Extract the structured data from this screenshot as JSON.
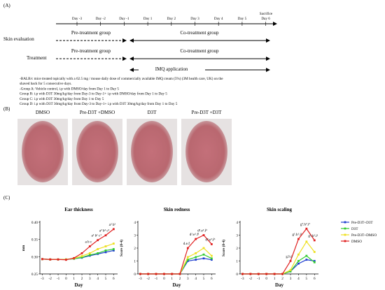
{
  "panel_a": {
    "label": "(A)",
    "days": [
      "Day -3",
      "Day -2",
      "Day -1",
      "Day 1",
      "Day 2",
      "Day 3",
      "Day 4",
      "Day 5",
      "Day 6"
    ],
    "sacrifice": "Sacrifice",
    "rows": [
      {
        "label": "Skin evaluation",
        "pre": "Pre-treatment group",
        "co": "Co-treatment group"
      },
      {
        "label": "Treatment",
        "pre": "Pre-treatment group",
        "co": "Co-treatment group"
      }
    ],
    "imq": "IMQ application",
    "notes": [
      "-BALB/c mice treated topically with a 62.5 mg / mouse daily dose of commercially available IMQ cream (5%) (3M health care, UK) on the",
      "shaved back for 5 consecutive days.",
      "-Group A: Vehicle control, i.p with DMSO/day from Day 1 to Day 5",
      "Group B: i.p with D3T 30mg/kg/day from Day-3 to Day-1+ i.p with DMSO/day from Day 1 to Day 5",
      "Group C: i.p with D3T 30mg/kg/day from Day 1 to Day 5",
      "Group D: i.p with D3T 30mg/kg/day from Day-3 to Day-1+ i.p with D3T 30mg/kg/day from Day 1 to Day 5"
    ]
  },
  "panel_b": {
    "label": "(B)",
    "photos": [
      "DMSO",
      "Pre-D3T +DMSO",
      "D3T",
      "Pre-D3T +D3T"
    ]
  },
  "panel_c": {
    "label": "(C)",
    "charts": [
      {
        "type": "line",
        "title": "Ear thickness",
        "xlabel": "Day",
        "ylabel": "mm",
        "x": [
          -3,
          -2,
          -1,
          0,
          1,
          2,
          3,
          4,
          5,
          6
        ],
        "xlim": [
          -3.3,
          6.5
        ],
        "xticks": [
          -3,
          -2,
          -1,
          0,
          1,
          2,
          3,
          4,
          5,
          6
        ],
        "ylim": [
          0.25,
          0.4
        ],
        "yticks": [
          0.25,
          {
            "value": 0.3,
            "label": "0.30"
          },
          0.35,
          {
            "value": 0.4,
            "label": "0.40"
          }
        ],
        "series": [
          {
            "name": "Pre-D3T+D3T",
            "color": "#1f3fd0",
            "values": [
              0.293,
              0.292,
              0.292,
              0.292,
              0.294,
              0.297,
              0.303,
              0.308,
              0.313,
              0.318
            ]
          },
          {
            "name": "D3T",
            "color": "#33cc33",
            "values": [
              0.293,
              0.292,
              0.292,
              0.292,
              0.294,
              0.298,
              0.305,
              0.31,
              0.318,
              0.322
            ]
          },
          {
            "name": "Pre-D3T+DMSO",
            "color": "#eee022",
            "values": [
              0.293,
              0.292,
              0.292,
              0.292,
              0.295,
              0.302,
              0.31,
              0.322,
              0.33,
              0.338
            ]
          },
          {
            "name": "DMSO",
            "color": "#e02020",
            "values": [
              0.293,
              0.292,
              0.292,
              0.291,
              0.296,
              0.31,
              0.33,
              0.348,
              0.362,
              0.38
            ]
          }
        ],
        "annotations": [
          "a b c",
          "a¹ b¹ c¹",
          "a² b² c²",
          "a³ b³"
        ]
      },
      {
        "type": "line",
        "title": "Skin redness",
        "xlabel": "Day",
        "ylabel": "Score (0-4)",
        "x": [
          -3,
          -2,
          -1,
          0,
          1,
          2,
          3,
          4,
          5,
          6
        ],
        "xlim": [
          -3.3,
          6.5
        ],
        "xticks": [
          -3,
          -2,
          -1,
          0,
          1,
          2,
          3,
          4,
          5,
          6
        ],
        "ylim": [
          0,
          4
        ],
        "yticks": [
          0,
          1,
          2,
          3,
          4
        ],
        "series": [
          {
            "name": "Pre-D3T+D3T",
            "color": "#1f3fd0",
            "values": [
              0,
              0,
              0,
              0,
              0,
              0,
              1.0,
              1.1,
              1.2,
              1.1
            ]
          },
          {
            "name": "D3T",
            "color": "#33cc33",
            "values": [
              0,
              0,
              0,
              0,
              0,
              0,
              1.1,
              1.3,
              1.5,
              1.2
            ]
          },
          {
            "name": "Pre-D3T+DMSO",
            "color": "#eee022",
            "values": [
              0,
              0,
              0,
              0,
              0,
              0,
              1.3,
              1.6,
              2.0,
              1.4
            ]
          },
          {
            "name": "DMSO",
            "color": "#e02020",
            "values": [
              0,
              0,
              0,
              0,
              0,
              0,
              2.0,
              2.7,
              3.0,
              2.3
            ]
          }
        ],
        "annotations": [
          "d.e.f",
          "d¹.e¹.f¹",
          "d².e².f²",
          "d³.e³.f³"
        ]
      },
      {
        "type": "line",
        "title": "Skin scaling",
        "xlabel": "Day",
        "ylabel": "Score (0-4)",
        "x": [
          -3,
          -2,
          -1,
          0,
          1,
          2,
          3,
          4,
          5,
          6
        ],
        "xlim": [
          -3.3,
          6.5
        ],
        "xticks": [
          -3,
          -2,
          -1,
          0,
          1,
          2,
          3,
          4,
          5,
          6
        ],
        "ylim": [
          0,
          4
        ],
        "yticks": [
          0,
          1,
          2,
          3,
          4
        ],
        "series": [
          {
            "name": "Pre-D3T+D3T",
            "color": "#1f3fd0",
            "values": [
              0,
              0,
              0,
              0,
              0,
              0,
              0.2,
              0.8,
              1.1,
              1.0
            ]
          },
          {
            "name": "D3T",
            "color": "#33cc33",
            "values": [
              0,
              0,
              0,
              0,
              0,
              0,
              0.2,
              1.0,
              1.4,
              0.9
            ]
          },
          {
            "name": "Pre-D3T+DMSO",
            "color": "#eee022",
            "values": [
              0,
              0,
              0,
              0,
              0,
              0,
              0.3,
              1.5,
              2.5,
              1.7
            ]
          },
          {
            "name": "DMSO",
            "color": "#e02020",
            "values": [
              0,
              0,
              0,
              0,
              0,
              0,
              1.0,
              2.7,
              3.5,
              2.6
            ]
          }
        ],
        "annotations": [
          "g.h.i",
          "g¹.h¹.i¹",
          "g².h².i²",
          "g³.h³.i³"
        ]
      }
    ]
  }
}
